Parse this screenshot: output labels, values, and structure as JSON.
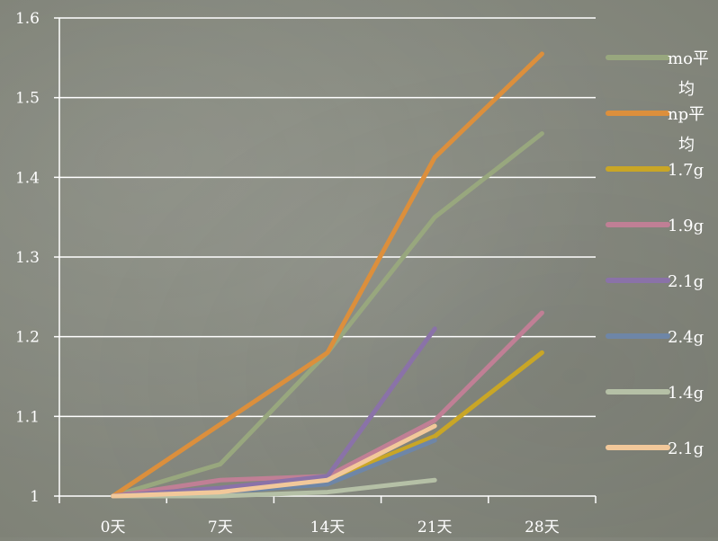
{
  "chart_data": {
    "type": "line",
    "categories": [
      "0天",
      "7天",
      "14天",
      "21天",
      "28天"
    ],
    "ylim": [
      1,
      1.6
    ],
    "yticks": [
      "1",
      "1.1",
      "1.2",
      "1.3",
      "1.4",
      "1.5",
      "1.6"
    ],
    "grid": true,
    "legend_position": "right",
    "series": [
      {
        "name": "mo平均",
        "color": "#98a77e",
        "values": [
          1.0,
          1.04,
          1.18,
          1.35,
          1.455
        ]
      },
      {
        "name": "np平均",
        "color": "#dc8f3c",
        "values": [
          1.0,
          1.09,
          1.18,
          1.425,
          1.555
        ]
      },
      {
        "name": "1.7g",
        "color": "#c9a626",
        "values": [
          1.0,
          1.005,
          1.02,
          1.075,
          1.18
        ]
      },
      {
        "name": "1.9g",
        "color": "#c07f95",
        "values": [
          1.0,
          1.02,
          1.025,
          1.095,
          1.23
        ]
      },
      {
        "name": "2.1g",
        "color": "#8a72a8",
        "values": [
          1.0,
          1.01,
          1.025,
          1.21,
          null
        ]
      },
      {
        "name": "2.4g",
        "color": "#6e86a7",
        "values": [
          1.0,
          1.005,
          1.015,
          1.07,
          null
        ]
      },
      {
        "name": "1.4g",
        "color": "#b5c0a6",
        "values": [
          1.0,
          1.0,
          1.005,
          1.02,
          null
        ]
      },
      {
        "name": "2.1g",
        "color": "#f2c89a",
        "values": [
          1.0,
          1.005,
          1.02,
          1.088,
          null
        ]
      }
    ]
  }
}
